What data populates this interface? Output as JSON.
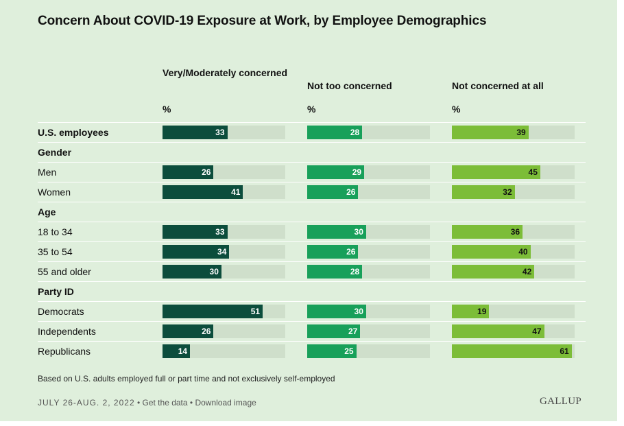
{
  "title": "Concern About COVID-19 Exposure at Work, by Employee Demographics",
  "footnote": "Based on U.S. adults employed full or part time and not exclusively self-employed",
  "footer": {
    "date": "JULY 26-AUG. 2, 2022",
    "get_data": "• Get the data",
    "download": "• Download image"
  },
  "logo": "GALLUP",
  "colors": {
    "background": "#dfefdc",
    "track": "#cfdfcb",
    "very_moderately": "#0c4d3c",
    "not_too": "#18a05a",
    "not_at_all": "#7cbd38"
  },
  "chart_data": {
    "type": "bar",
    "orientation": "horizontal",
    "xlim": [
      0,
      100
    ],
    "unit": "%",
    "series": [
      {
        "name": "Very/Moderately concerned",
        "unit_label": "%",
        "values": [
          33,
          26,
          41,
          33,
          34,
          30,
          51,
          26,
          14
        ]
      },
      {
        "name": "Not too concerned",
        "unit_label": "%",
        "values": [
          28,
          29,
          26,
          30,
          26,
          28,
          30,
          27,
          25
        ]
      },
      {
        "name": "Not concerned at all",
        "unit_label": "%",
        "values": [
          39,
          45,
          32,
          36,
          40,
          42,
          19,
          47,
          61
        ]
      }
    ],
    "rows": [
      {
        "label": "U.S. employees",
        "bold": true,
        "data_index": 0
      },
      {
        "label": "Gender",
        "bold": true,
        "header": true
      },
      {
        "label": "Men",
        "data_index": 1
      },
      {
        "label": "Women",
        "data_index": 2
      },
      {
        "label": "Age",
        "bold": true,
        "header": true
      },
      {
        "label": "18 to 34",
        "data_index": 3
      },
      {
        "label": "35 to 54",
        "data_index": 4
      },
      {
        "label": "55 and older",
        "data_index": 5
      },
      {
        "label": "Party ID",
        "bold": true,
        "header": true
      },
      {
        "label": "Democrats",
        "data_index": 6
      },
      {
        "label": "Independents",
        "data_index": 7
      },
      {
        "label": "Republicans",
        "data_index": 8
      }
    ]
  }
}
